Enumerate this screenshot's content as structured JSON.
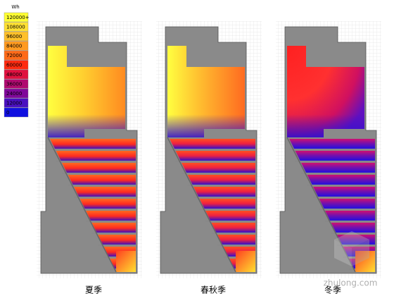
{
  "legend": {
    "unit": "Wh",
    "items": [
      {
        "label": "120000+",
        "color": "#ffff33"
      },
      {
        "label": "108000",
        "color": "#ffe033"
      },
      {
        "label": "96000",
        "color": "#ffc02a"
      },
      {
        "label": "84000",
        "color": "#ff9a20"
      },
      {
        "label": "72000",
        "color": "#ff6a18"
      },
      {
        "label": "60000",
        "color": "#ff2a10"
      },
      {
        "label": "48000",
        "color": "#e01040"
      },
      {
        "label": "36000",
        "color": "#b00a70"
      },
      {
        "label": "24000",
        "color": "#80089a"
      },
      {
        "label": "12000",
        "color": "#4a10c0"
      },
      {
        "label": "0",
        "color": "#1010e0"
      }
    ]
  },
  "panels": [
    {
      "caption": "夏季"
    },
    {
      "caption": "春秋季"
    },
    {
      "caption": "冬季"
    }
  ],
  "watermark": "zhulong.com"
}
